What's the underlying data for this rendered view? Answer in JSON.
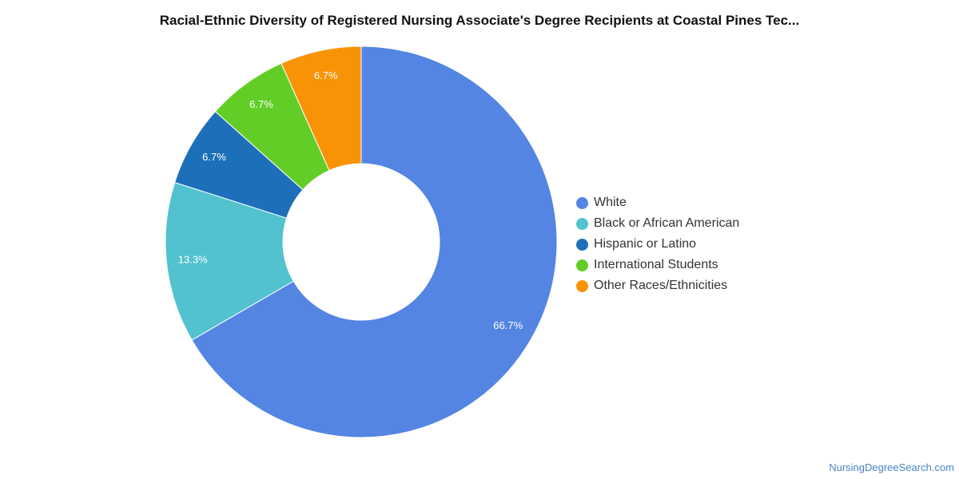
{
  "chart_data": {
    "type": "pie",
    "title": "Racial-Ethnic Diversity of Registered Nursing Associate's Degree Recipients at Coastal Pines Tec...",
    "donut": true,
    "legend_position": "right",
    "slices": [
      {
        "label": "White",
        "value": 66.7,
        "display": "66.7%",
        "color": "#5485e2"
      },
      {
        "label": "Black or African American",
        "value": 13.3,
        "display": "13.3%",
        "color": "#52c2cf"
      },
      {
        "label": "Hispanic or Latino",
        "value": 6.7,
        "display": "6.7%",
        "color": "#1d6fb9"
      },
      {
        "label": "International Students",
        "value": 6.7,
        "display": "6.7%",
        "color": "#62cd27"
      },
      {
        "label": "Other Races/Ethnicities",
        "value": 6.7,
        "display": "6.7%",
        "color": "#f89306"
      }
    ]
  },
  "footer": {
    "source": "NursingDegreeSearch.com"
  }
}
